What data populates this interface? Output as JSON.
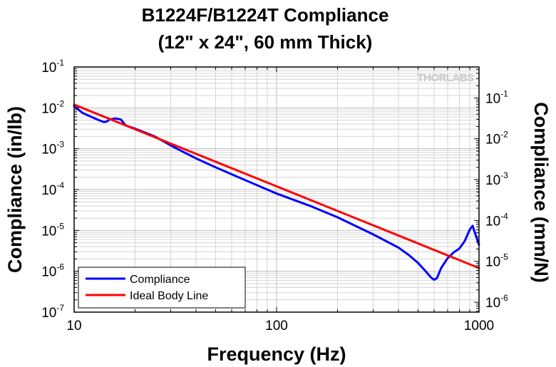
{
  "chart_data": {
    "type": "line",
    "title": "B1224F/B1224T Compliance",
    "subtitle": "(12\" x 24\", 60 mm Thick)",
    "xlabel": "Frequency (Hz)",
    "ylabel": "Compliance (in/lb)",
    "y2label": "Compliance (mm/N)",
    "xscale": "log",
    "yscale": "log",
    "xlim": [
      10,
      1000
    ],
    "ylim": [
      1e-07,
      0.1
    ],
    "y2lim": [
      5.71e-07,
      0.571
    ],
    "x_ticks": [
      {
        "value": 10,
        "label": "10"
      },
      {
        "value": 100,
        "label": "100"
      },
      {
        "value": 1000,
        "label": "1000"
      }
    ],
    "y_ticks": [
      {
        "value": 1e-07,
        "base": "10",
        "exp": "-7"
      },
      {
        "value": 1e-06,
        "base": "10",
        "exp": "-6"
      },
      {
        "value": 1e-05,
        "base": "10",
        "exp": "-5"
      },
      {
        "value": 0.0001,
        "base": "10",
        "exp": "-4"
      },
      {
        "value": 0.001,
        "base": "10",
        "exp": "-3"
      },
      {
        "value": 0.01,
        "base": "10",
        "exp": "-2"
      },
      {
        "value": 0.1,
        "base": "10",
        "exp": "-1"
      }
    ],
    "y2_ticks": [
      {
        "value": 1e-06,
        "base": "10",
        "exp": "-6"
      },
      {
        "value": 1e-05,
        "base": "10",
        "exp": "-5"
      },
      {
        "value": 0.0001,
        "base": "10",
        "exp": "-4"
      },
      {
        "value": 0.001,
        "base": "10",
        "exp": "-3"
      },
      {
        "value": 0.01,
        "base": "10",
        "exp": "-2"
      },
      {
        "value": 0.1,
        "base": "10",
        "exp": "-1"
      }
    ],
    "grid": true,
    "legend_position": "bottom-left",
    "watermark": "THORLABS",
    "series": [
      {
        "name": "Compliance",
        "color": "#0000ff",
        "x": [
          10,
          11,
          12,
          13,
          14,
          14.5,
          15,
          16,
          17,
          18,
          20,
          25,
          30,
          40,
          50,
          70,
          100,
          150,
          200,
          300,
          400,
          450,
          500,
          550,
          580,
          600,
          620,
          650,
          700,
          750,
          800,
          850,
          900,
          930,
          960,
          1000
        ],
        "y": [
          0.011,
          0.0075,
          0.0062,
          0.0052,
          0.0045,
          0.0046,
          0.0052,
          0.0055,
          0.0052,
          0.0037,
          0.0031,
          0.002,
          0.0012,
          0.00058,
          0.00035,
          0.00017,
          8e-05,
          3.8e-05,
          2.1e-05,
          8e-06,
          3.8e-06,
          2.5e-06,
          1.6e-06,
          9.5e-07,
          7e-07,
          6.2e-07,
          6.8e-07,
          1.2e-06,
          2.1e-06,
          2.9e-06,
          3.6e-06,
          5.5e-06,
          1.05e-05,
          1.3e-05,
          8e-06,
          4.5e-06
        ]
      },
      {
        "name": "Ideal Body Line",
        "color": "#ff0000",
        "x": [
          10,
          1000
        ],
        "y": [
          0.012,
          1.2e-06
        ]
      }
    ]
  }
}
